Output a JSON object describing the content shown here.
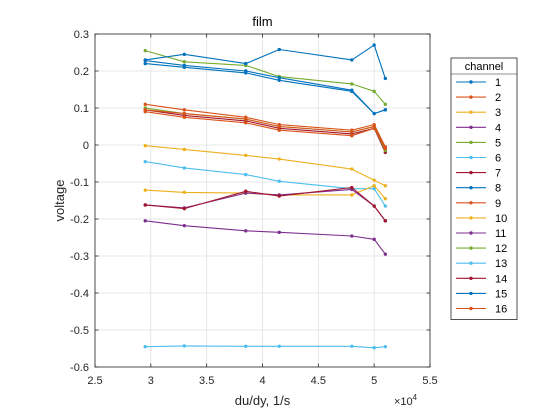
{
  "chart_data": {
    "type": "line",
    "title": "film",
    "xlabel": "du/dy, 1/s",
    "ylabel": "voltage",
    "x_exponent_label": "×10",
    "x_exponent_power": "4",
    "xlim": [
      25000,
      55000
    ],
    "ylim": [
      -0.6,
      0.3
    ],
    "grid": true,
    "x_tick_values": [
      25000,
      30000,
      35000,
      40000,
      45000,
      50000,
      55000
    ],
    "x_tick_labels": [
      "2.5",
      "3",
      "3.5",
      "4",
      "4.5",
      "5",
      "5.5"
    ],
    "y_tick_values": [
      -0.6,
      -0.5,
      -0.4,
      -0.3,
      -0.2,
      -0.1,
      0,
      0.1,
      0.2,
      0.3
    ],
    "y_tick_labels": [
      "-0.6",
      "-0.5",
      "-0.4",
      "-0.3",
      "-0.2",
      "-0.1",
      "0",
      "0.1",
      "0.2",
      "0.3"
    ],
    "legend": {
      "title": "channel",
      "position": "right"
    },
    "x": [
      29500,
      33000,
      38500,
      41500,
      48000,
      50000,
      51000
    ],
    "series": [
      {
        "name": "1",
        "color": "#0072BD",
        "values": [
          0.22,
          0.21,
          0.195,
          0.175,
          0.145,
          0.085,
          0.095
        ]
      },
      {
        "name": "2",
        "color": "#D95319",
        "values": [
          0.11,
          0.095,
          0.075,
          0.055,
          0.04,
          0.055,
          -0.005
        ]
      },
      {
        "name": "3",
        "color": "#EDB120",
        "values": [
          -0.002,
          -0.012,
          -0.028,
          -0.038,
          -0.065,
          -0.095,
          -0.11
        ]
      },
      {
        "name": "4",
        "color": "#7E2F8E",
        "values": [
          -0.205,
          -0.218,
          -0.232,
          -0.236,
          -0.246,
          -0.255,
          -0.295
        ]
      },
      {
        "name": "5",
        "color": "#77AC30",
        "values": [
          0.255,
          0.225,
          0.215,
          0.185,
          0.165,
          0.145,
          0.11
        ]
      },
      {
        "name": "6",
        "color": "#4DBEEE",
        "values": [
          -0.045,
          -0.062,
          -0.08,
          -0.098,
          -0.118,
          -0.118,
          -0.165
        ]
      },
      {
        "name": "7",
        "color": "#A2142F",
        "values": [
          0.095,
          0.08,
          0.065,
          0.045,
          0.03,
          0.045,
          -0.02
        ]
      },
      {
        "name": "8",
        "color": "#0072BD",
        "values": [
          0.23,
          0.245,
          0.22,
          0.258,
          0.23,
          0.27,
          0.18
        ]
      },
      {
        "name": "9",
        "color": "#D95319",
        "values": [
          0.09,
          0.075,
          0.06,
          0.04,
          0.025,
          0.045,
          -0.01
        ]
      },
      {
        "name": "10",
        "color": "#EDB120",
        "values": [
          -0.122,
          -0.128,
          -0.13,
          -0.135,
          -0.135,
          -0.11,
          -0.145
        ]
      },
      {
        "name": "11",
        "color": "#7E2F8E",
        "values": [
          -0.162,
          -0.17,
          -0.13,
          -0.135,
          -0.12,
          -0.165,
          -0.205
        ]
      },
      {
        "name": "12",
        "color": "#77AC30",
        "values": [
          0.1,
          0.085,
          0.07,
          0.05,
          0.035,
          0.05,
          -0.015
        ]
      },
      {
        "name": "13",
        "color": "#4DBEEE",
        "values": [
          -0.545,
          -0.543,
          -0.544,
          -0.544,
          -0.544,
          -0.548,
          -0.545
        ]
      },
      {
        "name": "14",
        "color": "#A2142F",
        "values": [
          -0.162,
          -0.172,
          -0.125,
          -0.138,
          -0.115,
          -0.165,
          -0.205
        ]
      },
      {
        "name": "15",
        "color": "#0072BD",
        "values": [
          0.228,
          0.215,
          0.2,
          0.182,
          0.148,
          0.085,
          0.095
        ]
      },
      {
        "name": "16",
        "color": "#D95319",
        "values": [
          0.095,
          0.085,
          0.07,
          0.05,
          0.035,
          0.05,
          -0.01
        ]
      }
    ]
  }
}
